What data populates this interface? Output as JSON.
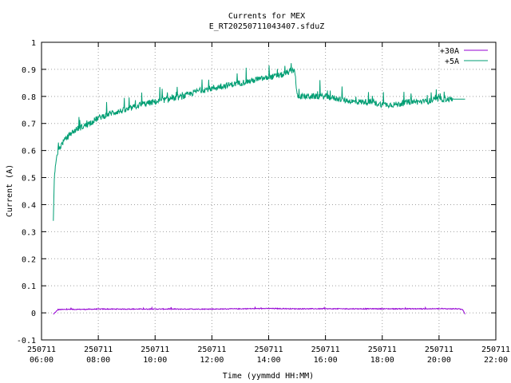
{
  "chart_data": {
    "type": "line",
    "title": "Currents for MEX",
    "subtitle": "E_RT20250711043407.sfduZ",
    "xlabel": "Time (yymmdd HH:MM)",
    "ylabel": "Current (A)",
    "xlim": [
      "2025-07-11 06:00",
      "2025-07-11 22:00"
    ],
    "ylim": [
      -0.1,
      1.0
    ],
    "grid": true,
    "legend_position": "top-right",
    "x_ticks": [
      {
        "date": "250711",
        "time": "06:00"
      },
      {
        "date": "250711",
        "time": "08:00"
      },
      {
        "date": "250711",
        "time": "10:00"
      },
      {
        "date": "250711",
        "time": "12:00"
      },
      {
        "date": "250711",
        "time": "14:00"
      },
      {
        "date": "250711",
        "time": "16:00"
      },
      {
        "date": "250711",
        "time": "18:00"
      },
      {
        "date": "250711",
        "time": "20:00"
      },
      {
        "date": "250711",
        "time": "22:00"
      }
    ],
    "y_ticks": [
      "-0.1",
      "0",
      "0.1",
      "0.2",
      "0.3",
      "0.4",
      "0.5",
      "0.6",
      "0.7",
      "0.8",
      "0.9",
      "1"
    ],
    "series": [
      {
        "name": "+30A",
        "color": "#9400d3",
        "x": [
          "06:25",
          "06:28",
          "06:35",
          "07:00",
          "07:30",
          "08:00",
          "09:00",
          "10:00",
          "11:00",
          "12:00",
          "13:00",
          "14:00",
          "15:00",
          "16:00",
          "17:00",
          "18:00",
          "19:00",
          "20:00",
          "20:40",
          "20:50",
          "20:55"
        ],
        "y": [
          -0.005,
          0.0,
          0.012,
          0.013,
          0.013,
          0.014,
          0.014,
          0.014,
          0.014,
          0.014,
          0.015,
          0.016,
          0.015,
          0.015,
          0.015,
          0.015,
          0.015,
          0.015,
          0.015,
          0.012,
          -0.005
        ]
      },
      {
        "name": "+5A",
        "color": "#009e73",
        "x": [
          "06:25",
          "06:27",
          "06:30",
          "06:35",
          "06:45",
          "07:00",
          "07:15",
          "07:30",
          "08:00",
          "08:15",
          "08:30",
          "09:00",
          "09:30",
          "10:00",
          "10:30",
          "11:00",
          "11:30",
          "12:00",
          "12:30",
          "13:00",
          "13:30",
          "14:00",
          "14:30",
          "14:55",
          "15:00",
          "15:30",
          "16:00",
          "16:30",
          "17:00",
          "17:30",
          "18:00",
          "18:30",
          "19:00",
          "19:30",
          "20:00",
          "20:30",
          "20:55"
        ],
        "y": [
          0.34,
          0.5,
          0.56,
          0.6,
          0.63,
          0.66,
          0.68,
          0.69,
          0.72,
          0.73,
          0.74,
          0.75,
          0.77,
          0.78,
          0.79,
          0.8,
          0.82,
          0.83,
          0.84,
          0.85,
          0.86,
          0.87,
          0.88,
          0.9,
          0.8,
          0.8,
          0.8,
          0.79,
          0.78,
          0.78,
          0.77,
          0.77,
          0.78,
          0.78,
          0.79,
          0.79,
          0.79
        ]
      }
    ]
  }
}
